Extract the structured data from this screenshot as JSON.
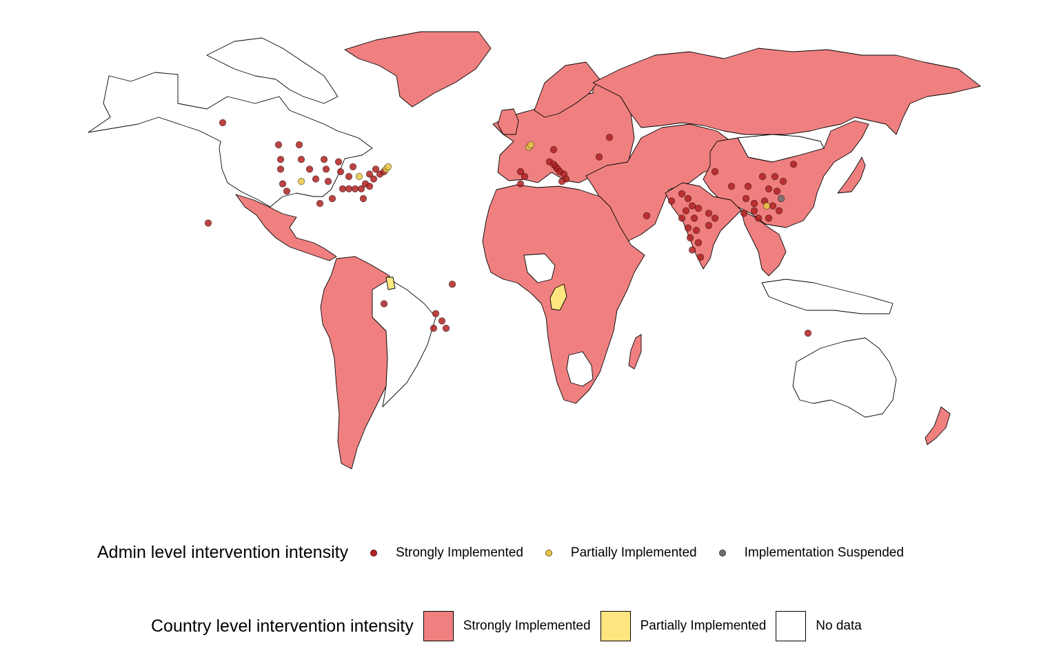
{
  "colors": {
    "strongly_implemented_fill": "#F08080",
    "partially_implemented_fill": "#FFE680",
    "no_data_fill": "#FFFFFF",
    "admin_strong_dot": "#B22222",
    "admin_partial_dot": "#E8C547",
    "admin_suspended_dot": "#707070"
  },
  "legend_admin": {
    "title": "Admin level intervention intensity",
    "items": [
      {
        "label": "Strongly Implemented",
        "color": "#B22222"
      },
      {
        "label": "Partially Implemented",
        "color": "#E8C547"
      },
      {
        "label": "Implementation Suspended",
        "color": "#707070"
      }
    ]
  },
  "legend_country": {
    "title": "Country level intervention intensity",
    "items": [
      {
        "label": "Strongly Implemented",
        "color": "#F08080"
      },
      {
        "label": "Partially Implemented",
        "color": "#FFE680"
      },
      {
        "label": "No data",
        "color": "#FFFFFF"
      }
    ]
  },
  "map": {
    "regions": [
      {
        "name": "North America (Canada, USA, Alaska)",
        "status": "No data"
      },
      {
        "name": "Greenland",
        "status": "Strongly Implemented"
      },
      {
        "name": "Mexico and Central America",
        "status": "Strongly Implemented"
      },
      {
        "name": "South America (west and south)",
        "status": "Strongly Implemented"
      },
      {
        "name": "Brazil",
        "status": "No data"
      },
      {
        "name": "Europe",
        "status": "Strongly Implemented"
      },
      {
        "name": "Russia",
        "status": "Strongly Implemented"
      },
      {
        "name": "Middle East and Central Asia",
        "status": "Strongly Implemented"
      },
      {
        "name": "Africa",
        "status": "Strongly Implemented"
      },
      {
        "name": "Republic of the Congo",
        "status": "Partially Implemented"
      },
      {
        "name": "Suriname",
        "status": "Partially Implemented"
      },
      {
        "name": "Mongolia",
        "status": "No data"
      },
      {
        "name": "China",
        "status": "Strongly Implemented"
      },
      {
        "name": "India",
        "status": "Strongly Implemented"
      },
      {
        "name": "Southeast Asia",
        "status": "Strongly Implemented"
      },
      {
        "name": "Japan",
        "status": "Strongly Implemented"
      },
      {
        "name": "Australia",
        "status": "No data"
      },
      {
        "name": "New Zealand",
        "status": "Strongly Implemented"
      }
    ],
    "admin_points": [
      {
        "region": "Alaska",
        "lon": -150,
        "lat": 62,
        "level": "Strongly Implemented"
      },
      {
        "region": "Hawaii",
        "lon": -157,
        "lat": 21,
        "level": "Strongly Implemented"
      },
      {
        "region": "Western Canada",
        "lon": -123,
        "lat": 53,
        "level": "Strongly Implemented"
      },
      {
        "region": "Western Canada",
        "lon": -113,
        "lat": 53,
        "level": "Strongly Implemented"
      },
      {
        "region": "USA",
        "lon": -122,
        "lat": 47,
        "level": "Strongly Implemented"
      },
      {
        "region": "USA",
        "lon": -122,
        "lat": 43,
        "level": "Strongly Implemented"
      },
      {
        "region": "USA",
        "lon": -121,
        "lat": 37,
        "level": "Strongly Implemented"
      },
      {
        "region": "USA",
        "lon": -119,
        "lat": 34,
        "level": "Strongly Implemented"
      },
      {
        "region": "USA",
        "lon": -112,
        "lat": 47,
        "level": "Strongly Implemented"
      },
      {
        "region": "USA",
        "lon": -112,
        "lat": 38,
        "level": "Partially Implemented"
      },
      {
        "region": "USA",
        "lon": -108,
        "lat": 43,
        "level": "Strongly Implemented"
      },
      {
        "region": "USA",
        "lon": -105,
        "lat": 39,
        "level": "Strongly Implemented"
      },
      {
        "region": "USA",
        "lon": -101,
        "lat": 47,
        "level": "Strongly Implemented"
      },
      {
        "region": "USA",
        "lon": -100,
        "lat": 43,
        "level": "Strongly Implemented"
      },
      {
        "region": "USA",
        "lon": -99,
        "lat": 38,
        "level": "Strongly Implemented"
      },
      {
        "region": "USA",
        "lon": -97,
        "lat": 31,
        "level": "Strongly Implemented"
      },
      {
        "region": "USA",
        "lon": -94,
        "lat": 46,
        "level": "Strongly Implemented"
      },
      {
        "region": "USA",
        "lon": -93,
        "lat": 42,
        "level": "Strongly Implemented"
      },
      {
        "region": "USA",
        "lon": -92,
        "lat": 35,
        "level": "Strongly Implemented"
      },
      {
        "region": "USA",
        "lon": -89,
        "lat": 40,
        "level": "Strongly Implemented"
      },
      {
        "region": "USA",
        "lon": -89,
        "lat": 35,
        "level": "Strongly Implemented"
      },
      {
        "region": "USA",
        "lon": -87,
        "lat": 44,
        "level": "Strongly Implemented"
      },
      {
        "region": "USA",
        "lon": -86,
        "lat": 35,
        "level": "Strongly Implemented"
      },
      {
        "region": "USA",
        "lon": -84,
        "lat": 40,
        "level": "Partially Implemented"
      },
      {
        "region": "USA",
        "lon": -83,
        "lat": 35,
        "level": "Strongly Implemented"
      },
      {
        "region": "USA",
        "lon": -82,
        "lat": 31,
        "level": "Strongly Implemented"
      },
      {
        "region": "USA",
        "lon": -81,
        "lat": 37,
        "level": "Strongly Implemented"
      },
      {
        "region": "USA",
        "lon": -79,
        "lat": 41,
        "level": "Strongly Implemented"
      },
      {
        "region": "USA",
        "lon": -79,
        "lat": 36,
        "level": "Strongly Implemented"
      },
      {
        "region": "USA",
        "lon": -77,
        "lat": 39,
        "level": "Strongly Implemented"
      },
      {
        "region": "USA",
        "lon": -76,
        "lat": 43,
        "level": "Strongly Implemented"
      },
      {
        "region": "USA",
        "lon": -74,
        "lat": 41,
        "level": "Strongly Implemented"
      },
      {
        "region": "USA",
        "lon": -72,
        "lat": 42,
        "level": "Strongly Implemented"
      },
      {
        "region": "USA",
        "lon": -71,
        "lat": 43,
        "level": "Partially Implemented"
      },
      {
        "region": "USA",
        "lon": -70,
        "lat": 44,
        "level": "Partially Implemented"
      },
      {
        "region": "Mexico",
        "lon": -103,
        "lat": 29,
        "level": "Strongly Implemented"
      },
      {
        "region": "Peru",
        "lon": -72,
        "lat": -12,
        "level": "Strongly Implemented"
      },
      {
        "region": "Brazil",
        "lon": -39,
        "lat": -4,
        "level": "Strongly Implemented"
      },
      {
        "region": "Brazil",
        "lon": -47,
        "lat": -16,
        "level": "Strongly Implemented"
      },
      {
        "region": "Brazil",
        "lon": -44,
        "lat": -19,
        "level": "Strongly Implemented"
      },
      {
        "region": "Brazil",
        "lon": -42,
        "lat": -22,
        "level": "Strongly Implemented"
      },
      {
        "region": "Brazil",
        "lon": -48,
        "lat": -22,
        "level": "Strongly Implemented"
      },
      {
        "region": "UK",
        "lon": -2,
        "lat": 52,
        "level": "Partially Implemented"
      },
      {
        "region": "UK",
        "lon": -1,
        "lat": 53,
        "level": "Partially Implemented"
      },
      {
        "region": "Germany",
        "lon": 10,
        "lat": 51,
        "level": "Strongly Implemented"
      },
      {
        "region": "Spain",
        "lon": -4,
        "lat": 40,
        "level": "Strongly Implemented"
      },
      {
        "region": "Spain",
        "lon": -6,
        "lat": 42,
        "level": "Strongly Implemented"
      },
      {
        "region": "Spain",
        "lon": -6,
        "lat": 37,
        "level": "Strongly Implemented"
      },
      {
        "region": "Italy",
        "lon": 8,
        "lat": 46,
        "level": "Strongly Implemented"
      },
      {
        "region": "Italy",
        "lon": 10,
        "lat": 45,
        "level": "Strongly Implemented"
      },
      {
        "region": "Italy",
        "lon": 11,
        "lat": 44,
        "level": "Strongly Implemented"
      },
      {
        "region": "Italy",
        "lon": 12,
        "lat": 43,
        "level": "Strongly Implemented"
      },
      {
        "region": "Italy",
        "lon": 13,
        "lat": 42,
        "level": "Strongly Implemented"
      },
      {
        "region": "Italy",
        "lon": 15,
        "lat": 41,
        "level": "Strongly Implemented"
      },
      {
        "region": "Italy",
        "lon": 16,
        "lat": 39,
        "level": "Strongly Implemented"
      },
      {
        "region": "Italy",
        "lon": 14,
        "lat": 38,
        "level": "Strongly Implemented"
      },
      {
        "region": "Russia",
        "lon": 37,
        "lat": 56,
        "level": "Strongly Implemented"
      },
      {
        "region": "Ukraine",
        "lon": 32,
        "lat": 48,
        "level": "Strongly Implemented"
      },
      {
        "region": "Pakistan",
        "lon": 67,
        "lat": 30,
        "level": "Strongly Implemented"
      },
      {
        "region": "Pakistan",
        "lon": 72,
        "lat": 33,
        "level": "Strongly Implemented"
      },
      {
        "region": "UAE",
        "lon": 55,
        "lat": 24,
        "level": "Strongly Implemented"
      },
      {
        "region": "India",
        "lon": 75,
        "lat": 31,
        "level": "Strongly Implemented"
      },
      {
        "region": "India",
        "lon": 77,
        "lat": 28,
        "level": "Strongly Implemented"
      },
      {
        "region": "India",
        "lon": 80,
        "lat": 27,
        "level": "Strongly Implemented"
      },
      {
        "region": "India",
        "lon": 74,
        "lat": 26,
        "level": "Strongly Implemented"
      },
      {
        "region": "India",
        "lon": 72,
        "lat": 23,
        "level": "Strongly Implemented"
      },
      {
        "region": "India",
        "lon": 78,
        "lat": 23,
        "level": "Strongly Implemented"
      },
      {
        "region": "India",
        "lon": 85,
        "lat": 25,
        "level": "Strongly Implemented"
      },
      {
        "region": "India",
        "lon": 88,
        "lat": 23,
        "level": "Strongly Implemented"
      },
      {
        "region": "India",
        "lon": 75,
        "lat": 19,
        "level": "Strongly Implemented"
      },
      {
        "region": "India",
        "lon": 79,
        "lat": 18,
        "level": "Strongly Implemented"
      },
      {
        "region": "India",
        "lon": 85,
        "lat": 20,
        "level": "Strongly Implemented"
      },
      {
        "region": "India",
        "lon": 76,
        "lat": 15,
        "level": "Strongly Implemented"
      },
      {
        "region": "India",
        "lon": 80,
        "lat": 13,
        "level": "Strongly Implemented"
      },
      {
        "region": "India",
        "lon": 77,
        "lat": 10,
        "level": "Strongly Implemented"
      },
      {
        "region": "Sri Lanka",
        "lon": 81,
        "lat": 7,
        "level": "Strongly Implemented"
      },
      {
        "region": "China",
        "lon": 88,
        "lat": 42,
        "level": "Strongly Implemented"
      },
      {
        "region": "China",
        "lon": 96,
        "lat": 36,
        "level": "Strongly Implemented"
      },
      {
        "region": "China",
        "lon": 104,
        "lat": 36,
        "level": "Strongly Implemented"
      },
      {
        "region": "China",
        "lon": 111,
        "lat": 40,
        "level": "Strongly Implemented"
      },
      {
        "region": "China",
        "lon": 117,
        "lat": 40,
        "level": "Strongly Implemented"
      },
      {
        "region": "China",
        "lon": 121,
        "lat": 38,
        "level": "Strongly Implemented"
      },
      {
        "region": "China",
        "lon": 126,
        "lat": 45,
        "level": "Strongly Implemented"
      },
      {
        "region": "China",
        "lon": 114,
        "lat": 35,
        "level": "Strongly Implemented"
      },
      {
        "region": "China",
        "lon": 118,
        "lat": 34,
        "level": "Strongly Implemented"
      },
      {
        "region": "China",
        "lon": 120,
        "lat": 31,
        "level": "Implementation Suspended"
      },
      {
        "region": "China",
        "lon": 103,
        "lat": 31,
        "level": "Strongly Implemented"
      },
      {
        "region": "China",
        "lon": 107,
        "lat": 29,
        "level": "Strongly Implemented"
      },
      {
        "region": "China",
        "lon": 112,
        "lat": 30,
        "level": "Strongly Implemented"
      },
      {
        "region": "China",
        "lon": 113,
        "lat": 28,
        "level": "Partially Implemented"
      },
      {
        "region": "China",
        "lon": 116,
        "lat": 28,
        "level": "Strongly Implemented"
      },
      {
        "region": "China",
        "lon": 119,
        "lat": 26,
        "level": "Strongly Implemented"
      },
      {
        "region": "China",
        "lon": 102,
        "lat": 25,
        "level": "Strongly Implemented"
      },
      {
        "region": "China",
        "lon": 107,
        "lat": 26,
        "level": "Strongly Implemented"
      },
      {
        "region": "China",
        "lon": 109,
        "lat": 23,
        "level": "Strongly Implemented"
      },
      {
        "region": "China",
        "lon": 114,
        "lat": 23,
        "level": "Strongly Implemented"
      },
      {
        "region": "Australia",
        "lon": 133,
        "lat": -24,
        "level": "Strongly Implemented"
      }
    ]
  }
}
